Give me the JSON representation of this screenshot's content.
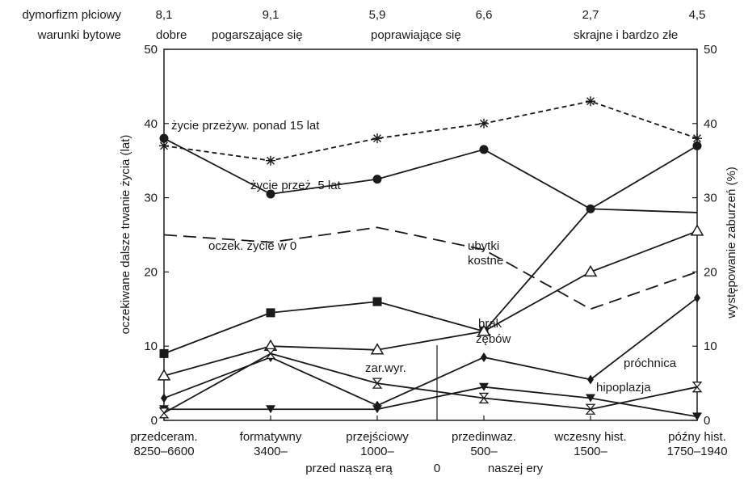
{
  "header": {
    "row1_label": "dymorfizm płciowy",
    "row2_label": "warunki bytowe",
    "dimorphism_values": [
      "8,1",
      "9,1",
      "5,9",
      "6,6",
      "2,7",
      "4,5"
    ],
    "conditions": [
      "dobre",
      "pogarszające się",
      "poprawiające się",
      "skrajne i bardzo złe"
    ]
  },
  "chart_data": {
    "type": "line",
    "categories": [
      {
        "line1": "przedceram.",
        "line2": "8250–6600"
      },
      {
        "line1": "formatywny",
        "line2": "3400–"
      },
      {
        "line1": "przejściowy",
        "line2": "1000–"
      },
      {
        "line1": "przedinwaz.",
        "line2": "500–"
      },
      {
        "line1": "wczesny hist.",
        "line2": "1500–"
      },
      {
        "line1": "późny hist.",
        "line2": "1750–1940"
      }
    ],
    "era_labels": {
      "before": "przed naszą erą",
      "zero": "0",
      "after": "naszej ery"
    },
    "ylabel_left": "oczekiwane dalsze trwanie życia (lat)",
    "ylabel_right": "występowanie zaburzeń (%)",
    "ylim": [
      0,
      50
    ],
    "yticks": [
      0,
      10,
      20,
      30,
      40,
      50
    ],
    "grid": false,
    "series": [
      {
        "name": "życie przeżyw. ponad 15 lat",
        "marker": "star",
        "dash": "dashed",
        "values": [
          37,
          35,
          38,
          40,
          43,
          38
        ]
      },
      {
        "name": "życie przeż. 5 lat",
        "marker": "circle",
        "dash": "solid",
        "values": [
          38,
          30.5,
          32.5,
          36.5,
          28.5,
          37
        ]
      },
      {
        "name": "oczek. życie w 0",
        "marker": "none",
        "dash": "longdash",
        "values": [
          25,
          24,
          26,
          23,
          15,
          20
        ]
      },
      {
        "name": "ubytki kostne",
        "marker": "none",
        "dash": "solid",
        "values": [
          null,
          null,
          null,
          12,
          28.5,
          28
        ]
      },
      {
        "name": "brak zębów",
        "marker": "square",
        "dash": "solid",
        "values": [
          9,
          14.5,
          16,
          12,
          null,
          null
        ]
      },
      {
        "name": "",
        "marker": "triangle",
        "dash": "solid",
        "values": [
          6,
          10,
          9.5,
          12,
          20,
          25.5
        ]
      },
      {
        "name": "próchnica",
        "marker": "diamond",
        "dash": "solid",
        "values": [
          3,
          8.5,
          2,
          8.5,
          5.5,
          16.5
        ]
      },
      {
        "name": "hipoplazja",
        "marker": "triangle-down",
        "dash": "solid",
        "values": [
          1.5,
          1.5,
          1.5,
          4.5,
          3,
          0.5
        ]
      },
      {
        "name": "zar.wyr.",
        "marker": "hourglass",
        "dash": "solid",
        "values": [
          1,
          9,
          5,
          3,
          1.5,
          4.5
        ]
      }
    ],
    "annotations": [
      "życie przeżyw. ponad 15 lat",
      "życie przeż. 5 lat",
      "oczek. życie w 0",
      "ubytki",
      "kostne",
      "brak",
      "zębów",
      "zar.wyr.",
      "próchnica",
      "hipoplazja"
    ]
  }
}
